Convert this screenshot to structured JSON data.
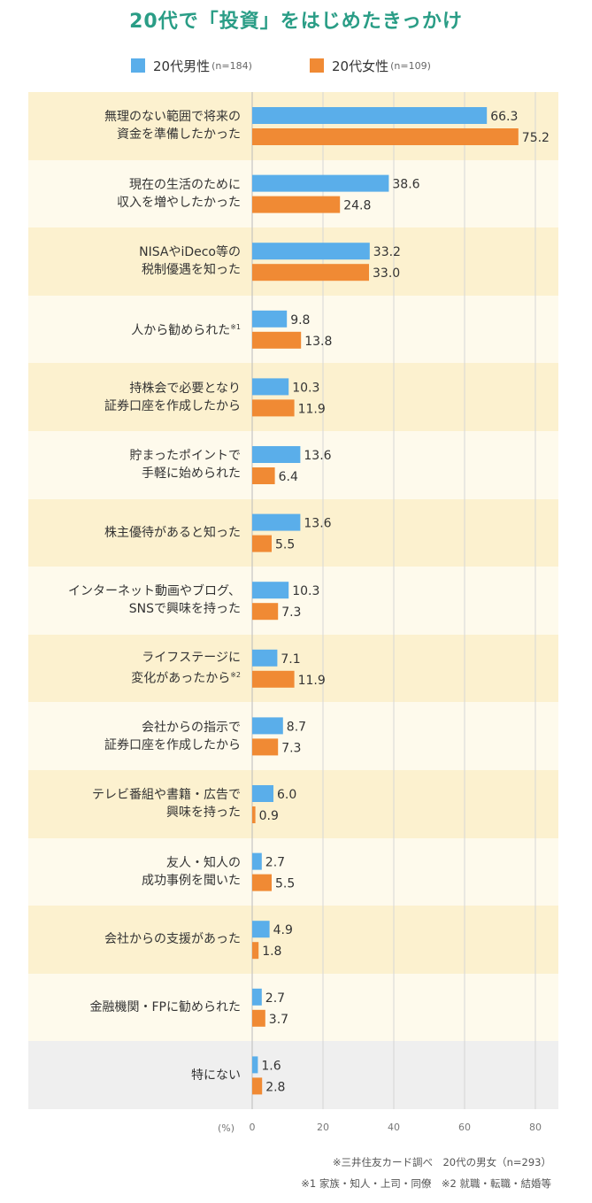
{
  "chart_data": {
    "type": "bar",
    "orientation": "horizontal",
    "title": "20代で「投資」をはじめたきっかけ",
    "unit": "(%)",
    "xlim": [
      0,
      85
    ],
    "xticks": [
      0,
      20,
      40,
      60,
      80
    ],
    "xtick_labels": [
      "0",
      "20",
      "40",
      "60",
      "80"
    ],
    "grid": true,
    "legend_position": "top",
    "categories": [
      {
        "lines": [
          "無理のない範囲で将来の",
          "資金を準備したかった"
        ],
        "note": ""
      },
      {
        "lines": [
          "現在の生活のために",
          "収入を増やしたかった"
        ],
        "note": ""
      },
      {
        "lines": [
          "NISAやiDeco等の",
          "税制優遇を知った"
        ],
        "note": ""
      },
      {
        "lines": [
          "人から勧められた"
        ],
        "note": "※1"
      },
      {
        "lines": [
          "持株会で必要となり",
          "証券口座を作成したから"
        ],
        "note": ""
      },
      {
        "lines": [
          "貯まったポイントで",
          "手軽に始められた"
        ],
        "note": ""
      },
      {
        "lines": [
          "株主優待があると知った"
        ],
        "note": ""
      },
      {
        "lines": [
          "インターネット動画やブログ、",
          "SNSで興味を持った"
        ],
        "note": ""
      },
      {
        "lines": [
          "ライフステージに",
          "変化があったから"
        ],
        "note": "※2"
      },
      {
        "lines": [
          "会社からの指示で",
          "証券口座を作成したから"
        ],
        "note": ""
      },
      {
        "lines": [
          "テレビ番組や書籍・広告で",
          "興味を持った"
        ],
        "note": ""
      },
      {
        "lines": [
          "友人・知人の",
          "成功事例を聞いた"
        ],
        "note": ""
      },
      {
        "lines": [
          "会社からの支援があった"
        ],
        "note": ""
      },
      {
        "lines": [
          "金融機関・FPに勧められた"
        ],
        "note": ""
      },
      {
        "lines": [
          "特にない"
        ],
        "note": ""
      }
    ],
    "series": [
      {
        "name": "20代男性",
        "n_label": "(n=184)",
        "color": "#5aaeea",
        "values": [
          66.3,
          38.6,
          33.2,
          9.8,
          10.3,
          13.6,
          13.6,
          10.3,
          7.1,
          8.7,
          6.0,
          2.7,
          4.9,
          2.7,
          1.6
        ],
        "labels": [
          "66.3",
          "38.6",
          "33.2",
          "9.8",
          "10.3",
          "13.6",
          "13.6",
          "10.3",
          "7.1",
          "8.7",
          "6.0",
          "2.7",
          "4.9",
          "2.7",
          "1.6"
        ]
      },
      {
        "name": "20代女性",
        "n_label": "(n=109)",
        "color": "#f08a34",
        "values": [
          75.2,
          24.8,
          33.0,
          13.8,
          11.9,
          6.4,
          5.5,
          7.3,
          11.9,
          7.3,
          0.9,
          5.5,
          1.8,
          3.7,
          2.8
        ],
        "labels": [
          "75.2",
          "24.8",
          "33.0",
          "13.8",
          "11.9",
          "6.4",
          "5.5",
          "7.3",
          "11.9",
          "7.3",
          "0.9",
          "5.5",
          "1.8",
          "3.7",
          "2.8"
        ]
      }
    ],
    "band_colors": [
      "#fcf1cf",
      "#fefaec"
    ],
    "last_band_color": "#efefef"
  },
  "footnotes": {
    "source": "※三井住友カード調べ　20代の男女（n=293）",
    "notes": "※1 家族・知人・上司・同僚　※2 就職・転職・結婚等"
  }
}
